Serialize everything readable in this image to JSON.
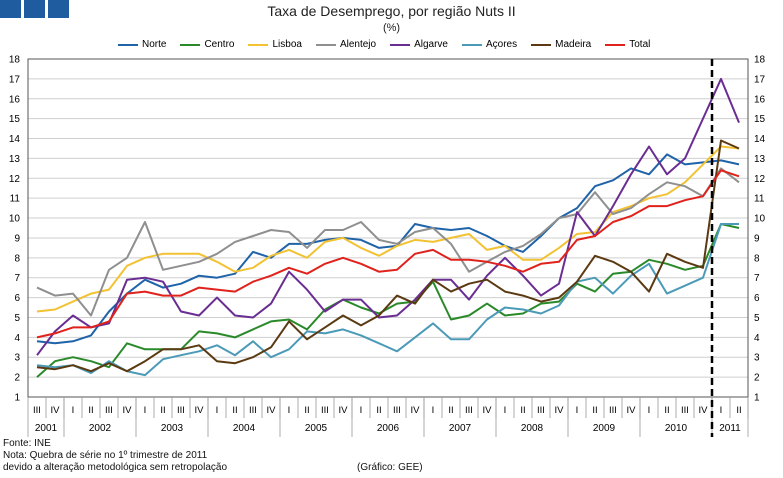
{
  "header": {
    "title": "Taxa de Desemprego, por região Nuts II",
    "subtitle": "(%)"
  },
  "footer": {
    "source": "Fonte: INE",
    "note1": "Nota: Quebra de série no 1º trimestre de 2011",
    "note2": "devido a alteração metodológica sem retropolação",
    "credit": "(Gráfico: GEE)"
  },
  "chart_data": {
    "type": "line",
    "title": "Taxa de Desemprego, por região Nuts II",
    "ylabel": "(%)",
    "ylim": [
      1,
      18
    ],
    "yticks": [
      1,
      2,
      3,
      4,
      5,
      6,
      7,
      8,
      9,
      10,
      11,
      12,
      13,
      14,
      15,
      16,
      17,
      18
    ],
    "grid": true,
    "break_after_index": 37,
    "categories": [
      "III",
      "IV",
      "I",
      "II",
      "III",
      "IV",
      "I",
      "II",
      "III",
      "IV",
      "I",
      "II",
      "III",
      "IV",
      "I",
      "II",
      "III",
      "IV",
      "I",
      "II",
      "III",
      "IV",
      "I",
      "II",
      "III",
      "IV",
      "I",
      "II",
      "III",
      "IV",
      "I",
      "II",
      "III",
      "IV",
      "I",
      "II",
      "III",
      "IV",
      "I",
      "II"
    ],
    "years": [
      {
        "label": "2001",
        "count": 2
      },
      {
        "label": "2002",
        "count": 4
      },
      {
        "label": "2003",
        "count": 4
      },
      {
        "label": "2004",
        "count": 4
      },
      {
        "label": "2005",
        "count": 4
      },
      {
        "label": "2006",
        "count": 4
      },
      {
        "label": "2007",
        "count": 4
      },
      {
        "label": "2008",
        "count": 4
      },
      {
        "label": "2009",
        "count": 4
      },
      {
        "label": "2010",
        "count": 4
      },
      {
        "label": "2011",
        "count": 2
      }
    ],
    "series": [
      {
        "name": "Norte",
        "color": "#1f63a8",
        "values": [
          3.8,
          3.7,
          3.8,
          4.1,
          5.3,
          6.2,
          6.9,
          6.5,
          6.7,
          7.1,
          7.0,
          7.2,
          8.3,
          8.0,
          8.7,
          8.7,
          8.9,
          9.0,
          8.9,
          8.5,
          8.6,
          9.7,
          9.5,
          9.4,
          9.5,
          9.1,
          8.6,
          8.3,
          9.1,
          10.0,
          10.5,
          11.6,
          11.9,
          12.5,
          12.2,
          13.2,
          12.7,
          12.8,
          12.9,
          12.7
        ]
      },
      {
        "name": "Centro",
        "color": "#2a8a2a",
        "values": [
          2.0,
          2.8,
          3.0,
          2.8,
          2.5,
          3.7,
          3.4,
          3.4,
          3.4,
          4.3,
          4.2,
          4.0,
          4.4,
          4.8,
          4.9,
          4.4,
          5.4,
          5.9,
          5.5,
          5.2,
          5.7,
          5.8,
          6.8,
          4.9,
          5.1,
          5.7,
          5.1,
          5.2,
          5.7,
          5.8,
          6.7,
          6.3,
          7.2,
          7.3,
          7.9,
          7.7,
          7.4,
          7.6,
          9.7,
          9.5
        ]
      },
      {
        "name": "Lisboa",
        "color": "#f2c232",
        "values": [
          5.3,
          5.4,
          5.8,
          6.2,
          6.4,
          7.6,
          8.0,
          8.2,
          8.2,
          8.2,
          7.8,
          7.3,
          7.5,
          8.1,
          8.4,
          8.0,
          8.8,
          9.0,
          8.5,
          8.1,
          8.6,
          8.9,
          8.8,
          9.0,
          9.2,
          8.4,
          8.6,
          7.9,
          7.9,
          8.5,
          9.2,
          9.3,
          10.3,
          10.6,
          11.0,
          11.2,
          11.8,
          12.7,
          13.6,
          13.5
        ]
      },
      {
        "name": "Alentejo",
        "color": "#8f8f8f",
        "values": [
          6.5,
          6.1,
          6.2,
          5.1,
          7.4,
          8.0,
          9.8,
          7.4,
          7.6,
          7.8,
          8.2,
          8.8,
          9.1,
          9.4,
          9.3,
          8.5,
          9.4,
          9.4,
          9.8,
          8.9,
          8.7,
          9.3,
          9.5,
          8.7,
          7.3,
          7.8,
          8.3,
          8.6,
          9.2,
          10.0,
          10.2,
          11.3,
          10.2,
          10.5,
          11.2,
          11.8,
          11.6,
          11.1,
          12.5,
          11.8
        ]
      },
      {
        "name": "Algarve",
        "color": "#6a2d91",
        "values": [
          3.1,
          4.3,
          5.1,
          4.5,
          4.7,
          6.9,
          7.0,
          6.8,
          5.3,
          5.1,
          6.0,
          5.1,
          5.0,
          5.7,
          7.3,
          6.4,
          5.3,
          5.9,
          5.9,
          5.0,
          5.1,
          5.9,
          6.9,
          6.9,
          5.9,
          7.1,
          8.0,
          7.1,
          6.1,
          6.7,
          10.3,
          9.1,
          10.6,
          12.2,
          13.6,
          12.2,
          13.0,
          15.0,
          17.0,
          14.8
        ]
      },
      {
        "name": "Açores",
        "color": "#4b9ab8",
        "values": [
          2.6,
          2.5,
          2.6,
          2.2,
          2.8,
          2.3,
          2.1,
          2.9,
          3.1,
          3.3,
          3.6,
          3.1,
          3.8,
          3.0,
          3.4,
          4.3,
          4.2,
          4.4,
          4.1,
          3.7,
          3.3,
          4.0,
          4.7,
          3.9,
          3.9,
          4.9,
          5.5,
          5.4,
          5.2,
          5.6,
          6.8,
          7.0,
          6.2,
          7.1,
          7.7,
          6.2,
          6.6,
          7.0,
          9.7,
          9.7
        ]
      },
      {
        "name": "Madeira",
        "color": "#5b3a12",
        "values": [
          2.5,
          2.4,
          2.6,
          2.3,
          2.7,
          2.3,
          2.8,
          3.4,
          3.4,
          3.6,
          2.8,
          2.7,
          3.0,
          3.5,
          4.8,
          3.9,
          4.5,
          5.1,
          4.6,
          5.1,
          6.1,
          5.7,
          6.9,
          6.3,
          6.7,
          6.9,
          6.3,
          6.1,
          5.8,
          6.0,
          6.8,
          8.1,
          7.8,
          7.3,
          6.3,
          8.2,
          7.8,
          7.5,
          13.9,
          13.5
        ]
      },
      {
        "name": "Total",
        "color": "#e0221c",
        "values": [
          4.0,
          4.2,
          4.5,
          4.5,
          4.8,
          6.2,
          6.3,
          6.1,
          6.1,
          6.5,
          6.4,
          6.3,
          6.8,
          7.1,
          7.5,
          7.2,
          7.7,
          8.0,
          7.7,
          7.3,
          7.4,
          8.2,
          8.4,
          7.9,
          7.9,
          7.8,
          7.6,
          7.3,
          7.7,
          7.8,
          8.9,
          9.1,
          9.8,
          10.1,
          10.6,
          10.6,
          10.9,
          11.1,
          12.4,
          12.1
        ]
      }
    ]
  }
}
